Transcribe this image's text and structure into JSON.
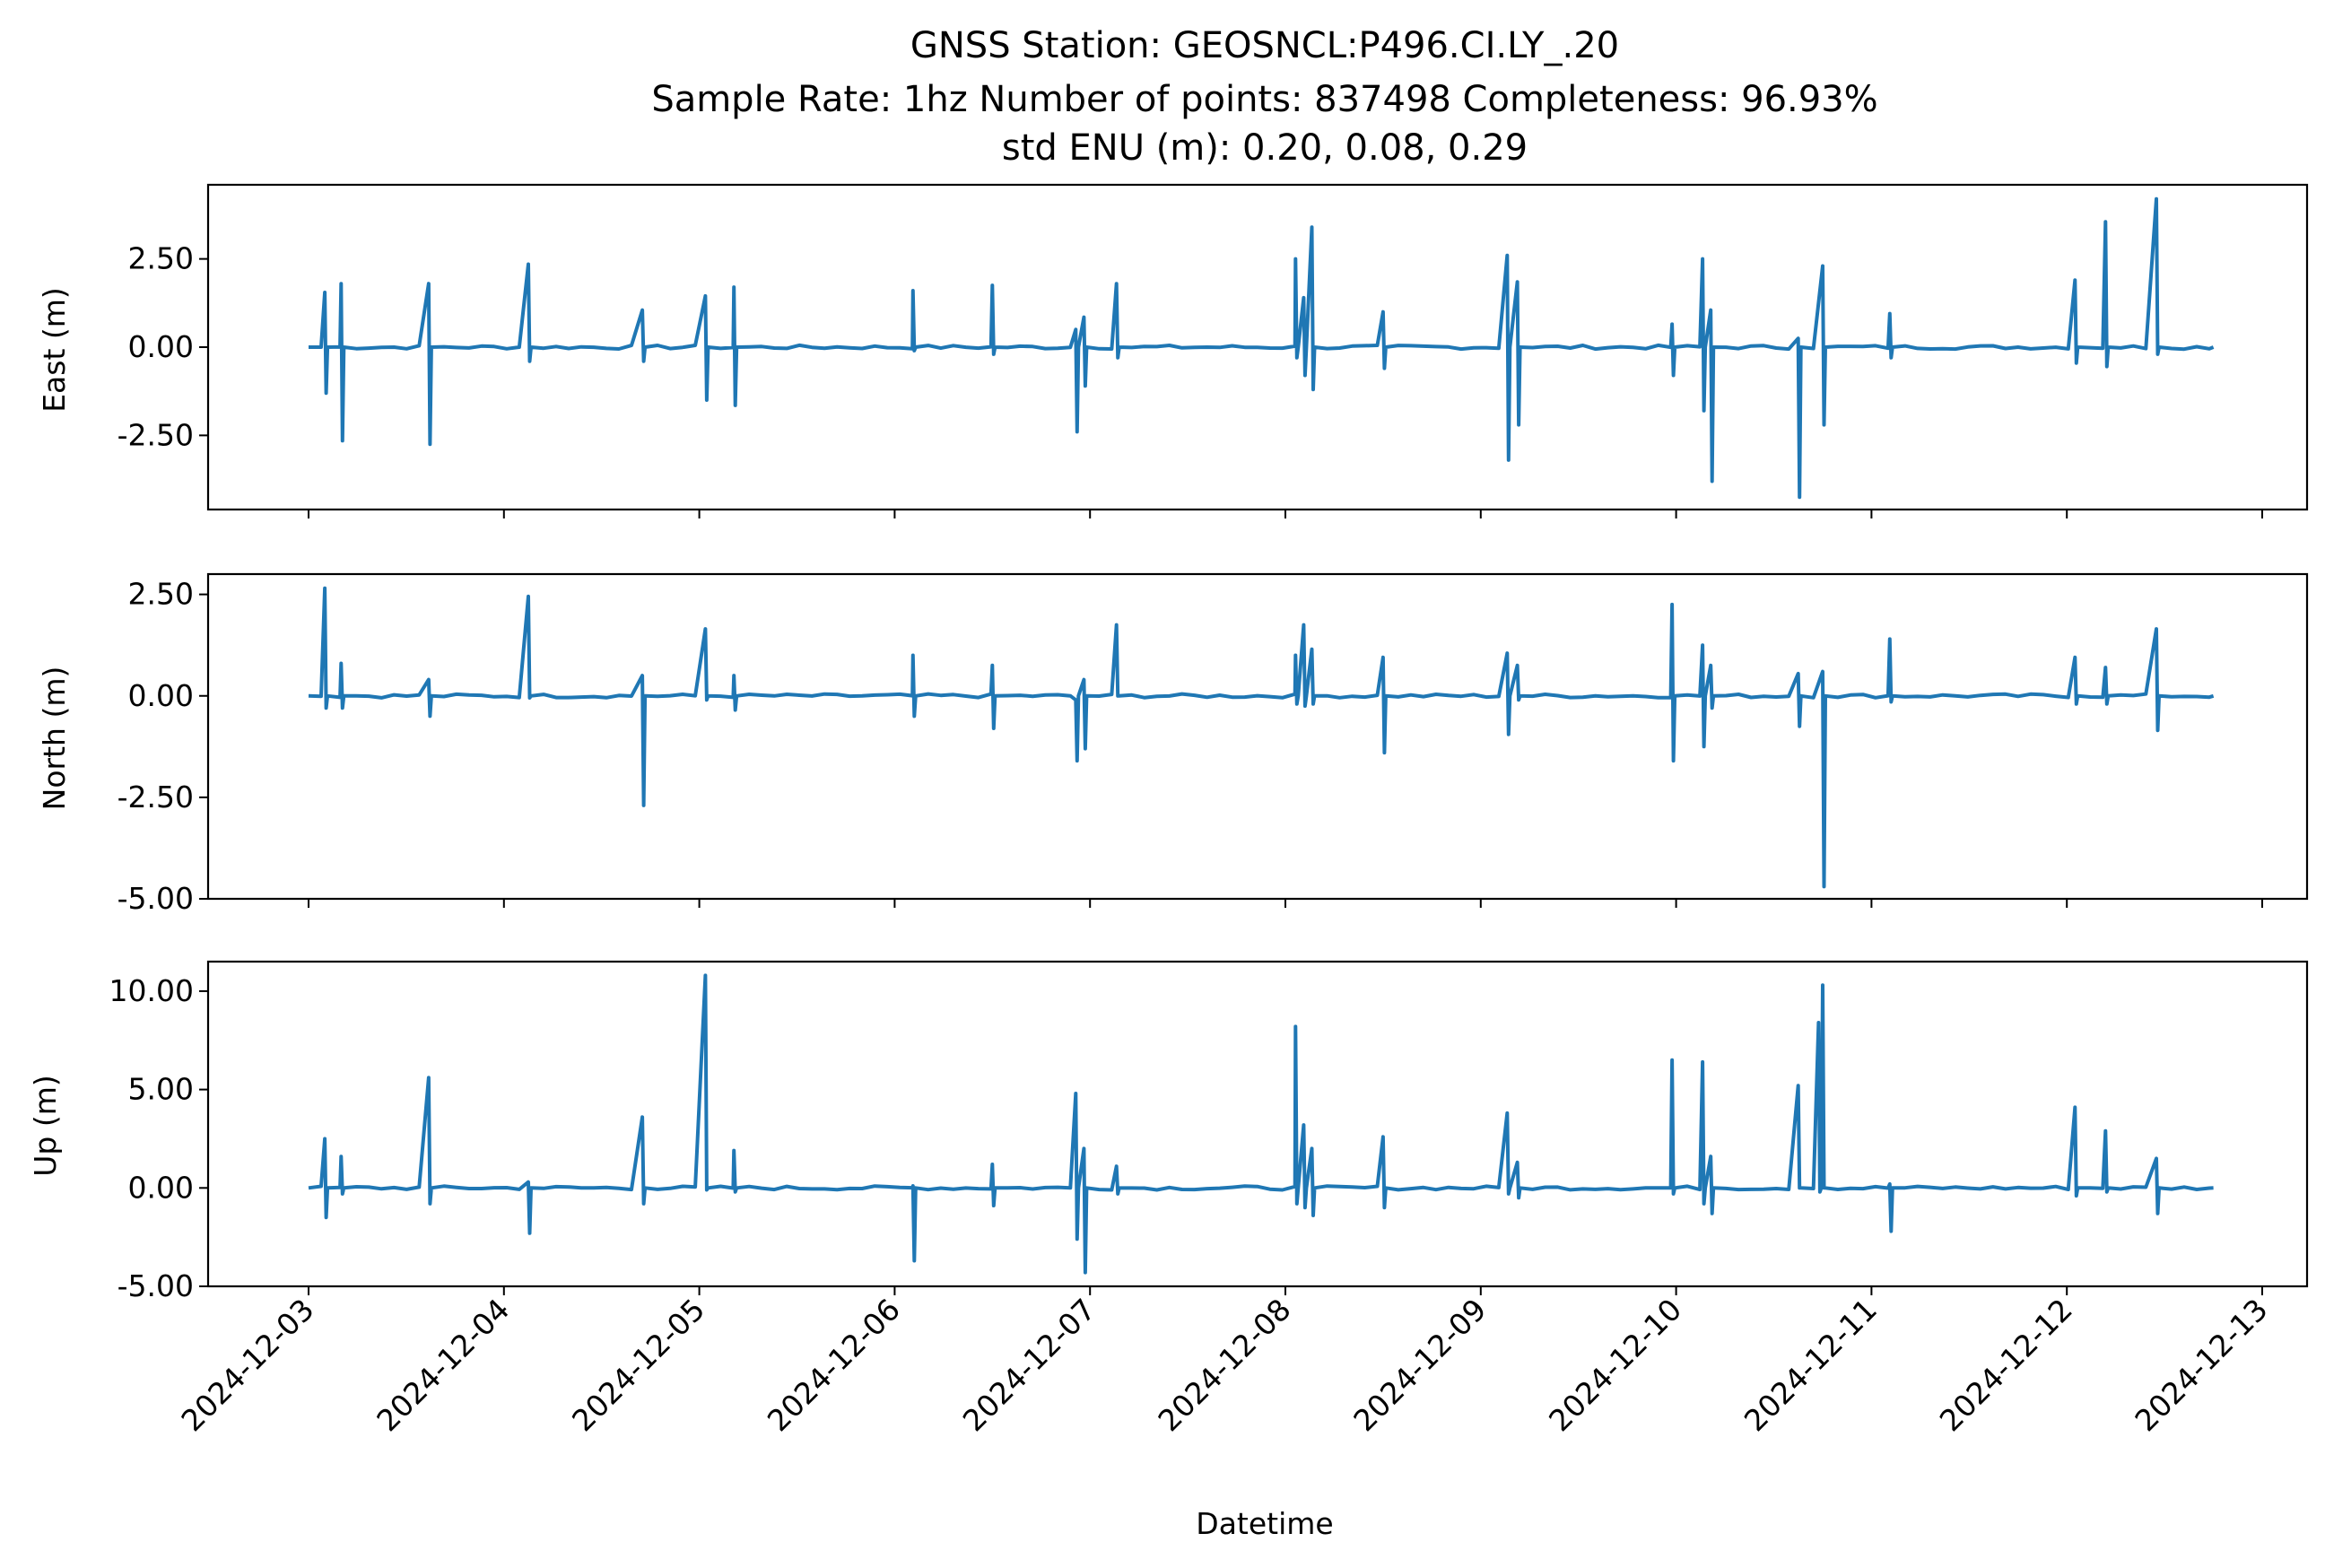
{
  "title": {
    "line1": "GNSS Station: GEOSNCL:P496.CI.LY_.20",
    "line2": "Sample Rate: 1hz   Number of points: 837498    Completeness:  96.93%",
    "line3": "std ENU (m):  0.20, 0.08, 0.29"
  },
  "chart_data": {
    "type": "line",
    "xlabel": "Datetime",
    "x_ticks": [
      "2024-12-03",
      "2024-12-04",
      "2024-12-05",
      "2024-12-06",
      "2024-12-07",
      "2024-12-08",
      "2024-12-09",
      "2024-12-10",
      "2024-12-11",
      "2024-12-12",
      "2024-12-13"
    ],
    "x_range": [
      "2024-12-03T00:00",
      "2024-12-12T18:00"
    ],
    "color": "#1f77b4",
    "grid": false,
    "panels": [
      {
        "ylabel": "East (m)",
        "yticks": [
          "2.50",
          "0.00",
          "-2.50"
        ],
        "ylim": [
          -4.6,
          4.6
        ],
        "spikes": [
          [
            "2024-12-03T02:00",
            1.55,
            -1.3
          ],
          [
            "2024-12-03T04:00",
            1.8,
            -2.65
          ],
          [
            "2024-12-03T14:45",
            1.8,
            -2.75
          ],
          [
            "2024-12-04T03:00",
            2.35,
            -0.4
          ],
          [
            "2024-12-04T17:00",
            1.05,
            -0.4
          ],
          [
            "2024-12-05T00:45",
            1.45,
            -1.5
          ],
          [
            "2024-12-05T04:15",
            1.7,
            -1.65
          ],
          [
            "2024-12-06T02:15",
            1.6,
            -0.1
          ],
          [
            "2024-12-06T12:00",
            1.75,
            -0.2
          ],
          [
            "2024-12-06T22:15",
            0.5,
            -2.4
          ],
          [
            "2024-12-06T23:15",
            0.85,
            -1.1
          ],
          [
            "2024-12-07T03:15",
            1.8,
            -0.3
          ],
          [
            "2024-12-08T01:15",
            2.5,
            -0.3
          ],
          [
            "2024-12-08T02:15",
            1.4,
            -0.8
          ],
          [
            "2024-12-08T03:15",
            3.4,
            -1.2
          ],
          [
            "2024-12-08T12:00",
            1.0,
            -0.6
          ],
          [
            "2024-12-09T03:15",
            2.6,
            -3.2
          ],
          [
            "2024-12-09T04:30",
            1.85,
            -2.2
          ],
          [
            "2024-12-09T23:30",
            0.65,
            -0.8
          ],
          [
            "2024-12-10T03:15",
            2.5,
            -1.8
          ],
          [
            "2024-12-10T04:15",
            1.05,
            -3.8
          ],
          [
            "2024-12-10T15:00",
            0.25,
            -4.25
          ],
          [
            "2024-12-10T18:00",
            2.3,
            -2.2
          ],
          [
            "2024-12-11T02:15",
            0.95,
            -0.3
          ],
          [
            "2024-12-12T01:00",
            1.9,
            -0.45
          ],
          [
            "2024-12-12T04:45",
            3.55,
            -0.55
          ],
          [
            "2024-12-12T11:00",
            4.2,
            -0.2
          ]
        ]
      },
      {
        "ylabel": "North (m)",
        "yticks": [
          "2.50",
          "0.00",
          "-2.50",
          "-5.00"
        ],
        "ylim": [
          -5.0,
          3.0
        ],
        "spikes": [
          [
            "2024-12-03T02:00",
            2.65,
            -0.3
          ],
          [
            "2024-12-03T04:00",
            0.8,
            -0.3
          ],
          [
            "2024-12-03T14:45",
            0.4,
            -0.5
          ],
          [
            "2024-12-04T03:00",
            2.45,
            -0.05
          ],
          [
            "2024-12-04T17:00",
            0.5,
            -2.7
          ],
          [
            "2024-12-05T00:45",
            1.65,
            -0.1
          ],
          [
            "2024-12-05T04:15",
            0.5,
            -0.35
          ],
          [
            "2024-12-06T02:15",
            1.0,
            -0.5
          ],
          [
            "2024-12-06T12:00",
            0.75,
            -0.8
          ],
          [
            "2024-12-06T22:15",
            -0.1,
            -1.6
          ],
          [
            "2024-12-06T23:15",
            0.4,
            -1.3
          ],
          [
            "2024-12-07T03:15",
            1.75,
            0.0
          ],
          [
            "2024-12-08T01:15",
            1.0,
            -0.2
          ],
          [
            "2024-12-08T02:15",
            1.75,
            -0.25
          ],
          [
            "2024-12-08T03:15",
            1.15,
            -0.2
          ],
          [
            "2024-12-08T12:00",
            0.95,
            -1.4
          ],
          [
            "2024-12-09T03:15",
            1.05,
            -0.95
          ],
          [
            "2024-12-09T04:30",
            0.75,
            -0.1
          ],
          [
            "2024-12-09T23:30",
            2.25,
            -1.6
          ],
          [
            "2024-12-10T03:15",
            1.25,
            -1.25
          ],
          [
            "2024-12-10T04:15",
            0.75,
            -0.3
          ],
          [
            "2024-12-10T15:00",
            0.55,
            -0.75
          ],
          [
            "2024-12-10T18:00",
            0.6,
            -4.7
          ],
          [
            "2024-12-11T02:15",
            1.4,
            -0.15
          ],
          [
            "2024-12-12T01:00",
            0.95,
            -0.2
          ],
          [
            "2024-12-12T04:45",
            0.7,
            -0.2
          ],
          [
            "2024-12-12T11:00",
            1.65,
            -0.85
          ]
        ]
      },
      {
        "ylabel": "Up (m)",
        "yticks": [
          "10.00",
          "5.00",
          "0.00",
          "-5.00"
        ],
        "ylim": [
          -5.0,
          11.5
        ],
        "spikes": [
          [
            "2024-12-03T02:00",
            2.5,
            -1.5
          ],
          [
            "2024-12-03T04:00",
            1.6,
            -0.3
          ],
          [
            "2024-12-03T14:45",
            5.6,
            -0.8
          ],
          [
            "2024-12-04T03:00",
            0.3,
            -2.3
          ],
          [
            "2024-12-04T17:00",
            3.6,
            -0.8
          ],
          [
            "2024-12-05T00:45",
            10.8,
            -0.1
          ],
          [
            "2024-12-05T04:15",
            1.9,
            -0.2
          ],
          [
            "2024-12-06T02:15",
            0.1,
            -3.7
          ],
          [
            "2024-12-06T12:00",
            1.2,
            -0.9
          ],
          [
            "2024-12-06T22:15",
            4.8,
            -2.6
          ],
          [
            "2024-12-06T23:15",
            2.0,
            -4.3
          ],
          [
            "2024-12-07T03:15",
            1.1,
            -0.3
          ],
          [
            "2024-12-08T01:15",
            8.2,
            -0.8
          ],
          [
            "2024-12-08T02:15",
            3.2,
            -1.0
          ],
          [
            "2024-12-08T03:15",
            2.0,
            -1.4
          ],
          [
            "2024-12-08T12:00",
            2.6,
            -1.0
          ],
          [
            "2024-12-09T03:15",
            3.8,
            -0.3
          ],
          [
            "2024-12-09T04:30",
            1.3,
            -0.5
          ],
          [
            "2024-12-09T23:30",
            6.5,
            -0.3
          ],
          [
            "2024-12-10T03:15",
            6.4,
            -0.8
          ],
          [
            "2024-12-10T04:15",
            1.6,
            -1.3
          ],
          [
            "2024-12-10T15:00",
            5.2,
            0.0
          ],
          [
            "2024-12-10T17:30",
            8.4,
            -0.2
          ],
          [
            "2024-12-10T18:00",
            10.3,
            0.0
          ],
          [
            "2024-12-11T02:15",
            0.2,
            -2.2
          ],
          [
            "2024-12-12T01:00",
            4.1,
            -0.4
          ],
          [
            "2024-12-12T04:45",
            2.9,
            -0.2
          ],
          [
            "2024-12-12T11:00",
            1.5,
            -1.3
          ]
        ]
      }
    ]
  }
}
